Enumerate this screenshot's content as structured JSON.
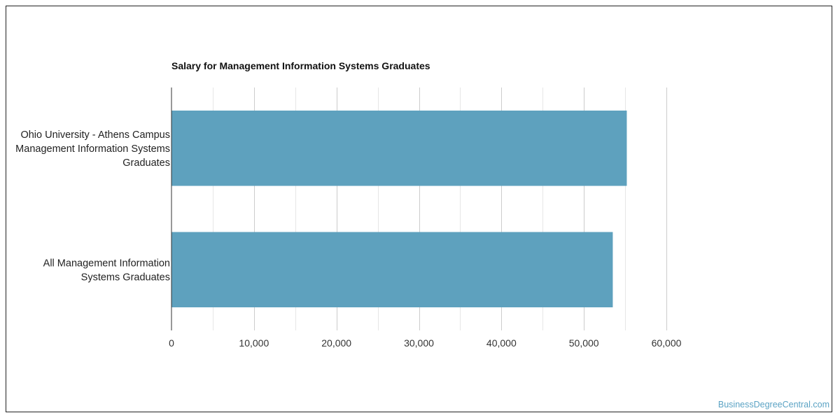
{
  "chart_data": {
    "type": "bar",
    "orientation": "horizontal",
    "title": "Salary for Management Information Systems Graduates",
    "categories": [
      [
        "Ohio University - Athens Campus",
        "Management Information Systems",
        "Graduates"
      ],
      [
        "All Management Information",
        "Systems Graduates"
      ]
    ],
    "values": [
      55200,
      53500
    ],
    "xlim": [
      0,
      60000
    ],
    "x_ticks": [
      0,
      10000,
      20000,
      30000,
      40000,
      50000,
      60000
    ],
    "x_tick_labels": [
      "0",
      "10,000",
      "20,000",
      "30,000",
      "40,000",
      "50,000",
      "60,000"
    ],
    "xlabel": "",
    "ylabel": "",
    "grid": true,
    "colors": {
      "bar": "#5ea1be",
      "grid_major": "#cccccc",
      "grid_minor": "#e6e6e6",
      "axis": "#333333"
    }
  },
  "watermark": "BusinessDegreeCentral.com"
}
